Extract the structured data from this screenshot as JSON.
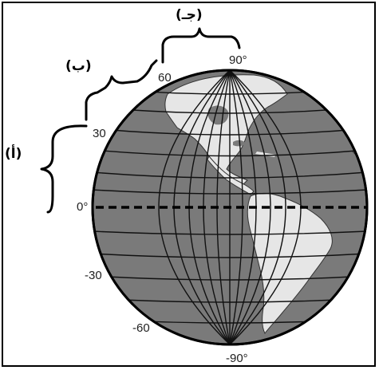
{
  "diagram": {
    "latitude_labels": {
      "equator": "0°",
      "n30": "30",
      "n60": "60",
      "n90": "90°",
      "s30": "-30",
      "s60": "-60",
      "s90": "-90°"
    },
    "bracket_labels": {
      "a": "(أ)",
      "b": "(ب)",
      "c": "(جـ)"
    },
    "colors": {
      "ocean": "#7a7a7a",
      "land": "#e6e6e6",
      "grid": "#111111",
      "outline": "#000000"
    }
  }
}
